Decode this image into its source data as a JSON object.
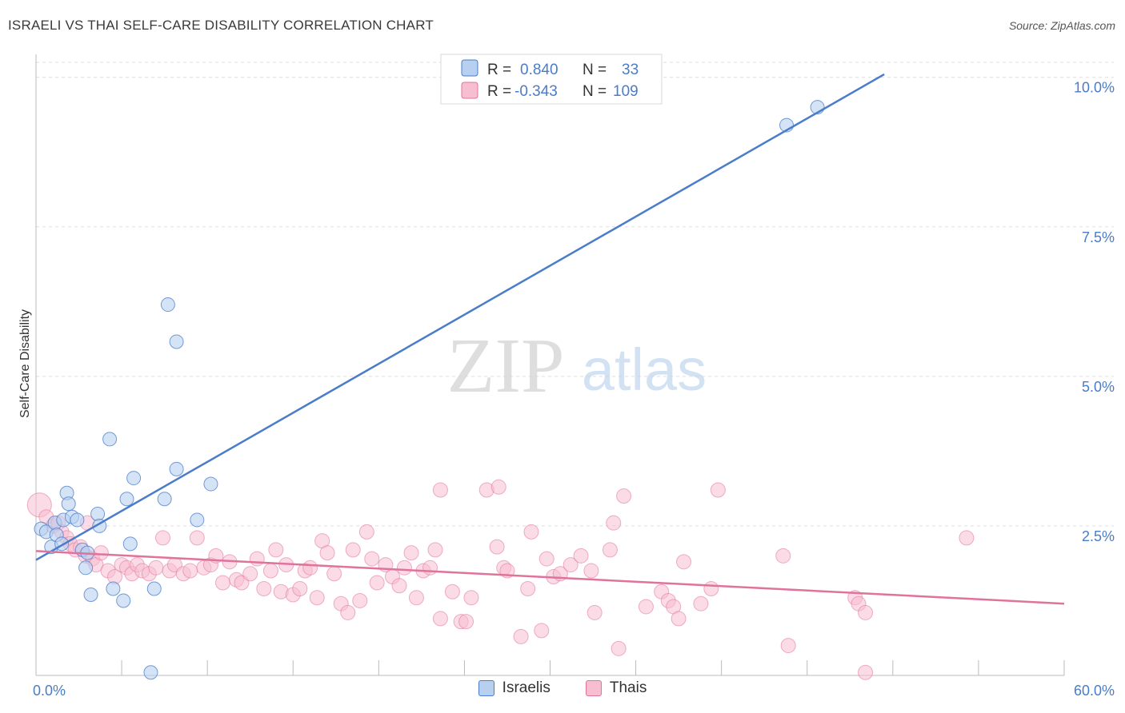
{
  "title": "ISRAELI VS THAI SELF-CARE DISABILITY CORRELATION CHART",
  "source": "Source: ZipAtlas.com",
  "watermark": {
    "zip": "ZIP",
    "atlas": "atlas"
  },
  "colors": {
    "israelis": "#4a7cc9",
    "israelis_fill": "#b8d0f0",
    "thais": "#e0739c",
    "thais_fill": "#f7bdd0",
    "axis_text": "#4a7cc9",
    "grid": "#dedede"
  },
  "legend": {
    "rows": [
      {
        "r_label": "R =",
        "r_value": "0.840",
        "n_label": "N =",
        "n_value": "33",
        "series": "israelis"
      },
      {
        "r_label": "R =",
        "r_value": "-0.343",
        "n_label": "N =",
        "n_value": "109",
        "series": "thais"
      }
    ]
  },
  "bottom_legend": [
    {
      "label": "Israelis",
      "series": "israelis"
    },
    {
      "label": "Thais",
      "series": "thais"
    }
  ],
  "chart_data": {
    "type": "scatter",
    "title": "ISRAELI VS THAI SELF-CARE DISABILITY CORRELATION CHART",
    "xlabel": "",
    "ylabel": "Self-Care Disability",
    "xlim": [
      0,
      60
    ],
    "ylim": [
      0,
      10.25
    ],
    "x_tick_labels": [
      {
        "value": 0,
        "label": "0.0%"
      },
      {
        "value": 60,
        "label": "60.0%"
      }
    ],
    "y_tick_labels": [
      {
        "value": 2.5,
        "label": "2.5%"
      },
      {
        "value": 5.0,
        "label": "5.0%"
      },
      {
        "value": 7.5,
        "label": "7.5%"
      },
      {
        "value": 10.0,
        "label": "10.0%"
      }
    ],
    "grid": true,
    "legend_position": "top-center",
    "series": [
      {
        "name": "Israelis",
        "color": "#4a7cc9",
        "trend": {
          "x": [
            0,
            49.5
          ],
          "y": [
            1.93,
            10.05
          ]
        },
        "points": [
          [
            0.3,
            2.45
          ],
          [
            0.6,
            2.4
          ],
          [
            0.9,
            2.15
          ],
          [
            1.1,
            2.55
          ],
          [
            1.2,
            2.35
          ],
          [
            1.5,
            2.2
          ],
          [
            1.6,
            2.6
          ],
          [
            1.8,
            3.05
          ],
          [
            1.9,
            2.87
          ],
          [
            2.1,
            2.65
          ],
          [
            2.4,
            2.6
          ],
          [
            2.7,
            2.1
          ],
          [
            2.9,
            1.8
          ],
          [
            3.0,
            2.05
          ],
          [
            3.6,
            2.7
          ],
          [
            3.7,
            2.5
          ],
          [
            3.2,
            1.35
          ],
          [
            4.3,
            3.95
          ],
          [
            5.1,
            1.25
          ],
          [
            4.5,
            1.45
          ],
          [
            5.3,
            2.95
          ],
          [
            5.5,
            2.2
          ],
          [
            5.7,
            3.3
          ],
          [
            6.7,
            0.05
          ],
          [
            6.9,
            1.45
          ],
          [
            7.5,
            2.95
          ],
          [
            7.7,
            6.2
          ],
          [
            8.2,
            5.58
          ],
          [
            8.2,
            3.45
          ],
          [
            9.4,
            2.6
          ],
          [
            10.2,
            3.2
          ],
          [
            43.8,
            9.2
          ],
          [
            45.6,
            9.5
          ]
        ]
      },
      {
        "name": "Thais",
        "color": "#e0739c",
        "trend": {
          "x": [
            0,
            60
          ],
          "y": [
            2.08,
            1.2
          ]
        },
        "points": [
          [
            0.2,
            2.85
          ],
          [
            0.6,
            2.65
          ],
          [
            1.0,
            2.5
          ],
          [
            1.3,
            2.55
          ],
          [
            1.5,
            2.4
          ],
          [
            1.8,
            2.3
          ],
          [
            2.0,
            2.2
          ],
          [
            2.3,
            2.1
          ],
          [
            2.6,
            2.15
          ],
          [
            2.9,
            2.0
          ],
          [
            3.0,
            2.55
          ],
          [
            3.3,
            1.95
          ],
          [
            3.5,
            1.85
          ],
          [
            3.8,
            2.05
          ],
          [
            4.2,
            1.75
          ],
          [
            4.6,
            1.65
          ],
          [
            5.0,
            1.85
          ],
          [
            5.3,
            1.8
          ],
          [
            5.6,
            1.7
          ],
          [
            5.9,
            1.85
          ],
          [
            6.2,
            1.75
          ],
          [
            6.6,
            1.7
          ],
          [
            7.0,
            1.8
          ],
          [
            7.4,
            2.3
          ],
          [
            7.8,
            1.75
          ],
          [
            8.1,
            1.85
          ],
          [
            8.6,
            1.7
          ],
          [
            9.0,
            1.75
          ],
          [
            9.4,
            2.3
          ],
          [
            9.8,
            1.8
          ],
          [
            10.2,
            1.85
          ],
          [
            10.5,
            2.0
          ],
          [
            10.9,
            1.55
          ],
          [
            11.3,
            1.9
          ],
          [
            11.7,
            1.6
          ],
          [
            12.0,
            1.55
          ],
          [
            12.5,
            1.7
          ],
          [
            12.9,
            1.95
          ],
          [
            13.3,
            1.45
          ],
          [
            13.7,
            1.75
          ],
          [
            14.0,
            2.1
          ],
          [
            14.3,
            1.4
          ],
          [
            14.6,
            1.85
          ],
          [
            15.0,
            1.35
          ],
          [
            15.4,
            1.45
          ],
          [
            15.7,
            1.75
          ],
          [
            16.0,
            1.8
          ],
          [
            16.4,
            1.3
          ],
          [
            16.7,
            2.25
          ],
          [
            17.0,
            2.05
          ],
          [
            17.4,
            1.7
          ],
          [
            17.8,
            1.2
          ],
          [
            18.2,
            1.05
          ],
          [
            18.5,
            2.1
          ],
          [
            18.9,
            1.25
          ],
          [
            19.3,
            2.4
          ],
          [
            19.6,
            1.95
          ],
          [
            19.9,
            1.55
          ],
          [
            20.4,
            1.85
          ],
          [
            20.8,
            1.65
          ],
          [
            21.2,
            1.5
          ],
          [
            21.5,
            1.8
          ],
          [
            21.9,
            2.05
          ],
          [
            22.2,
            1.3
          ],
          [
            22.6,
            1.75
          ],
          [
            23.0,
            1.8
          ],
          [
            23.3,
            2.1
          ],
          [
            23.6,
            0.95
          ],
          [
            23.6,
            3.1
          ],
          [
            24.3,
            1.4
          ],
          [
            24.8,
            0.9
          ],
          [
            25.1,
            0.9
          ],
          [
            25.4,
            1.3
          ],
          [
            26.3,
            3.1
          ],
          [
            27.0,
            3.15
          ],
          [
            26.9,
            2.15
          ],
          [
            27.3,
            1.8
          ],
          [
            27.5,
            1.75
          ],
          [
            28.3,
            0.65
          ],
          [
            28.7,
            1.45
          ],
          [
            28.9,
            2.4
          ],
          [
            29.5,
            0.75
          ],
          [
            29.8,
            1.95
          ],
          [
            30.2,
            1.65
          ],
          [
            30.6,
            1.7
          ],
          [
            31.2,
            1.85
          ],
          [
            31.8,
            2.0
          ],
          [
            32.4,
            1.75
          ],
          [
            32.6,
            1.05
          ],
          [
            33.5,
            2.1
          ],
          [
            33.7,
            2.55
          ],
          [
            34.0,
            0.45
          ],
          [
            34.3,
            3.0
          ],
          [
            35.6,
            1.15
          ],
          [
            36.5,
            1.4
          ],
          [
            36.9,
            1.25
          ],
          [
            37.2,
            1.15
          ],
          [
            37.5,
            0.95
          ],
          [
            37.8,
            1.9
          ],
          [
            38.8,
            1.2
          ],
          [
            39.4,
            1.45
          ],
          [
            39.8,
            3.1
          ],
          [
            43.6,
            2.0
          ],
          [
            43.9,
            0.5
          ],
          [
            47.8,
            1.3
          ],
          [
            48.0,
            1.2
          ],
          [
            48.4,
            1.05
          ],
          [
            48.4,
            0.05
          ],
          [
            54.3,
            2.3
          ]
        ]
      }
    ]
  }
}
